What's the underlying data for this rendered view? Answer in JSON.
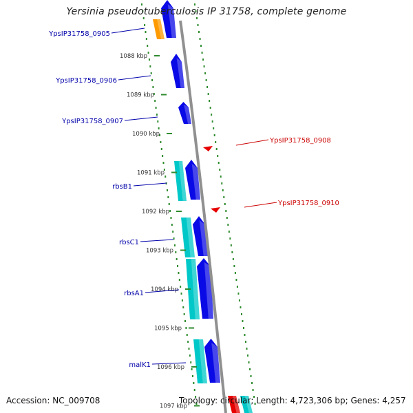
{
  "title": "Yersinia pseudotuberculosis IP 31758, complete genome",
  "footer": {
    "accession": "Accession: NC_009708",
    "summary": "Topology: circular; Length: 4,723,306 bp; Genes: 4,257"
  },
  "colors": {
    "forward_cds": "#0a0ae6",
    "forward_gene": "#00c8c8",
    "reverse_gene": "#e60000",
    "pseudo_gene": "#ff9a00",
    "backbone": "#909090",
    "ticks": "#2e8b2e",
    "label_forward": "#0000aa",
    "label_reverse": "#cc0000"
  },
  "scale_ticks": [
    "1088 kbp",
    "1089 kbp",
    "1090 kbp",
    "1091 kbp",
    "1092 kbp",
    "1093 kbp",
    "1094 kbp",
    "1095 kbp",
    "1096 kbp",
    "1097 kbp"
  ],
  "gene_labels": [
    {
      "text": "YpsIP31758_0905",
      "strand": "forward"
    },
    {
      "text": "YpsIP31758_0906",
      "strand": "forward"
    },
    {
      "text": "YpsIP31758_0907",
      "strand": "forward"
    },
    {
      "text": "rbsB1",
      "strand": "forward"
    },
    {
      "text": "rbsC1",
      "strand": "forward"
    },
    {
      "text": "rbsA1",
      "strand": "forward"
    },
    {
      "text": "malK1",
      "strand": "forward"
    },
    {
      "text": "YpsIP31758_0908",
      "strand": "reverse"
    },
    {
      "text": "YpsIP31758_0910",
      "strand": "reverse"
    }
  ]
}
